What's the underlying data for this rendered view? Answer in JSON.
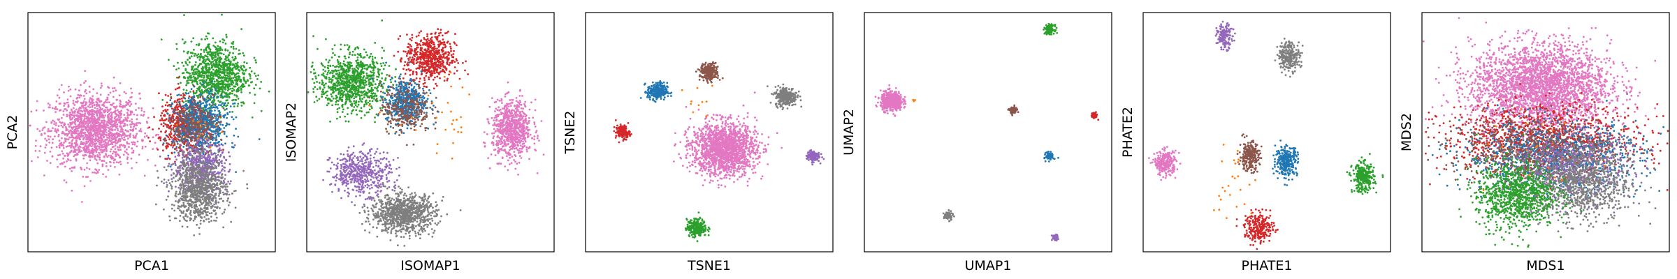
{
  "colors": {
    "pink": "#e377c2",
    "green": "#2ca02c",
    "red": "#d62728",
    "blue": "#1f77b4",
    "purple": "#9467bd",
    "gray": "#7f7f7f",
    "brown": "#8c564b",
    "orange": "#ff7f0e"
  },
  "chart_data": [
    {
      "type": "scatter",
      "xlabel": "PCA1",
      "ylabel": "PCA2",
      "xlim": [
        0,
        1
      ],
      "ylim": [
        0,
        1
      ],
      "grid": false,
      "clusters": [
        {
          "color": "pink",
          "x": 0.27,
          "y": 0.51,
          "sx": 0.09,
          "sy": 0.075,
          "n": 1600
        },
        {
          "color": "green",
          "x": 0.76,
          "y": 0.74,
          "sx": 0.065,
          "sy": 0.07,
          "n": 1000
        },
        {
          "color": "red",
          "x": 0.63,
          "y": 0.53,
          "sx": 0.05,
          "sy": 0.06,
          "n": 500
        },
        {
          "color": "blue",
          "x": 0.7,
          "y": 0.53,
          "sx": 0.055,
          "sy": 0.065,
          "n": 700
        },
        {
          "color": "brown",
          "x": 0.67,
          "y": 0.52,
          "sx": 0.05,
          "sy": 0.06,
          "n": 300
        },
        {
          "color": "purple",
          "x": 0.7,
          "y": 0.35,
          "sx": 0.055,
          "sy": 0.055,
          "n": 500
        },
        {
          "color": "gray",
          "x": 0.69,
          "y": 0.26,
          "sx": 0.055,
          "sy": 0.065,
          "n": 900
        },
        {
          "color": "orange",
          "x": 0.68,
          "y": 0.5,
          "sx": 0.04,
          "sy": 0.05,
          "n": 15
        }
      ]
    },
    {
      "type": "scatter",
      "xlabel": "ISOMAP1",
      "ylabel": "ISOMAP2",
      "xlim": [
        0,
        1
      ],
      "ylim": [
        0,
        1
      ],
      "grid": false,
      "clusters": [
        {
          "color": "green",
          "x": 0.18,
          "y": 0.71,
          "sx": 0.065,
          "sy": 0.06,
          "n": 900
        },
        {
          "color": "red",
          "x": 0.5,
          "y": 0.81,
          "sx": 0.05,
          "sy": 0.05,
          "n": 600
        },
        {
          "color": "blue",
          "x": 0.4,
          "y": 0.63,
          "sx": 0.04,
          "sy": 0.045,
          "n": 500
        },
        {
          "color": "brown",
          "x": 0.4,
          "y": 0.6,
          "sx": 0.05,
          "sy": 0.05,
          "n": 300
        },
        {
          "color": "pink",
          "x": 0.83,
          "y": 0.51,
          "sx": 0.04,
          "sy": 0.06,
          "n": 800
        },
        {
          "color": "purple",
          "x": 0.22,
          "y": 0.33,
          "sx": 0.06,
          "sy": 0.045,
          "n": 500
        },
        {
          "color": "gray",
          "x": 0.39,
          "y": 0.16,
          "sx": 0.065,
          "sy": 0.04,
          "n": 900
        },
        {
          "color": "orange",
          "x": 0.55,
          "y": 0.55,
          "sx": 0.1,
          "sy": 0.08,
          "n": 30
        }
      ]
    },
    {
      "type": "scatter",
      "xlabel": "TSNE1",
      "ylabel": "TSNE2",
      "xlim": [
        0,
        1
      ],
      "ylim": [
        0,
        1
      ],
      "grid": false,
      "clusters": [
        {
          "color": "pink",
          "x": 0.56,
          "y": 0.43,
          "sx": 0.065,
          "sy": 0.055,
          "n": 1600
        },
        {
          "color": "brown",
          "x": 0.5,
          "y": 0.75,
          "sx": 0.018,
          "sy": 0.018,
          "n": 250
        },
        {
          "color": "blue",
          "x": 0.29,
          "y": 0.67,
          "sx": 0.02,
          "sy": 0.018,
          "n": 250
        },
        {
          "color": "gray",
          "x": 0.81,
          "y": 0.65,
          "sx": 0.022,
          "sy": 0.02,
          "n": 300
        },
        {
          "color": "red",
          "x": 0.15,
          "y": 0.5,
          "sx": 0.014,
          "sy": 0.014,
          "n": 150
        },
        {
          "color": "purple",
          "x": 0.92,
          "y": 0.4,
          "sx": 0.013,
          "sy": 0.012,
          "n": 120
        },
        {
          "color": "green",
          "x": 0.45,
          "y": 0.1,
          "sx": 0.02,
          "sy": 0.018,
          "n": 250
        },
        {
          "color": "orange",
          "x": 0.47,
          "y": 0.62,
          "sx": 0.04,
          "sy": 0.04,
          "n": 10
        }
      ]
    },
    {
      "type": "scatter",
      "xlabel": "UMAP1",
      "ylabel": "UMAP2",
      "xlim": [
        0,
        1
      ],
      "ylim": [
        0,
        1
      ],
      "grid": false,
      "clusters": [
        {
          "color": "pink",
          "x": 0.11,
          "y": 0.63,
          "sx": 0.022,
          "sy": 0.02,
          "n": 500
        },
        {
          "color": "green",
          "x": 0.75,
          "y": 0.93,
          "sx": 0.009,
          "sy": 0.009,
          "n": 150
        },
        {
          "color": "brown",
          "x": 0.6,
          "y": 0.59,
          "sx": 0.008,
          "sy": 0.008,
          "n": 80
        },
        {
          "color": "red",
          "x": 0.93,
          "y": 0.57,
          "sx": 0.006,
          "sy": 0.006,
          "n": 50
        },
        {
          "color": "blue",
          "x": 0.75,
          "y": 0.4,
          "sx": 0.008,
          "sy": 0.008,
          "n": 90
        },
        {
          "color": "gray",
          "x": 0.34,
          "y": 0.15,
          "sx": 0.009,
          "sy": 0.009,
          "n": 80
        },
        {
          "color": "purple",
          "x": 0.77,
          "y": 0.06,
          "sx": 0.006,
          "sy": 0.006,
          "n": 50
        },
        {
          "color": "orange",
          "x": 0.2,
          "y": 0.63,
          "sx": 0.004,
          "sy": 0.004,
          "n": 4
        }
      ]
    },
    {
      "type": "scatter",
      "xlabel": "PHATE1",
      "ylabel": "PHATE2",
      "xlim": [
        0,
        1
      ],
      "ylim": [
        0,
        1
      ],
      "grid": false,
      "clusters": [
        {
          "color": "purple",
          "x": 0.33,
          "y": 0.9,
          "sx": 0.016,
          "sy": 0.025,
          "n": 150
        },
        {
          "color": "gray",
          "x": 0.59,
          "y": 0.82,
          "sx": 0.022,
          "sy": 0.03,
          "n": 250
        },
        {
          "color": "brown",
          "x": 0.43,
          "y": 0.4,
          "sx": 0.02,
          "sy": 0.03,
          "n": 250
        },
        {
          "color": "blue",
          "x": 0.58,
          "y": 0.38,
          "sx": 0.022,
          "sy": 0.03,
          "n": 300
        },
        {
          "color": "pink",
          "x": 0.09,
          "y": 0.37,
          "sx": 0.022,
          "sy": 0.025,
          "n": 250
        },
        {
          "color": "green",
          "x": 0.89,
          "y": 0.31,
          "sx": 0.022,
          "sy": 0.03,
          "n": 300
        },
        {
          "color": "red",
          "x": 0.47,
          "y": 0.1,
          "sx": 0.03,
          "sy": 0.03,
          "n": 250
        },
        {
          "color": "orange",
          "x": 0.35,
          "y": 0.3,
          "sx": 0.05,
          "sy": 0.09,
          "n": 25
        }
      ]
    },
    {
      "type": "scatter",
      "xlabel": "MDS1",
      "ylabel": "MDS2",
      "xlim": [
        0,
        1
      ],
      "ylim": [
        0,
        1
      ],
      "grid": false,
      "clusters": [
        {
          "color": "pink",
          "x": 0.48,
          "y": 0.69,
          "sx": 0.14,
          "sy": 0.09,
          "n": 2800
        },
        {
          "color": "red",
          "x": 0.48,
          "y": 0.47,
          "sx": 0.2,
          "sy": 0.07,
          "n": 1100
        },
        {
          "color": "blue",
          "x": 0.53,
          "y": 0.4,
          "sx": 0.18,
          "sy": 0.07,
          "n": 1000
        },
        {
          "color": "brown",
          "x": 0.45,
          "y": 0.43,
          "sx": 0.18,
          "sy": 0.07,
          "n": 600
        },
        {
          "color": "purple",
          "x": 0.6,
          "y": 0.36,
          "sx": 0.12,
          "sy": 0.07,
          "n": 500
        },
        {
          "color": "gray",
          "x": 0.64,
          "y": 0.29,
          "sx": 0.1,
          "sy": 0.08,
          "n": 1000
        },
        {
          "color": "green",
          "x": 0.38,
          "y": 0.24,
          "sx": 0.08,
          "sy": 0.07,
          "n": 1000
        },
        {
          "color": "orange",
          "x": 0.5,
          "y": 0.4,
          "sx": 0.15,
          "sy": 0.08,
          "n": 20
        }
      ]
    }
  ]
}
